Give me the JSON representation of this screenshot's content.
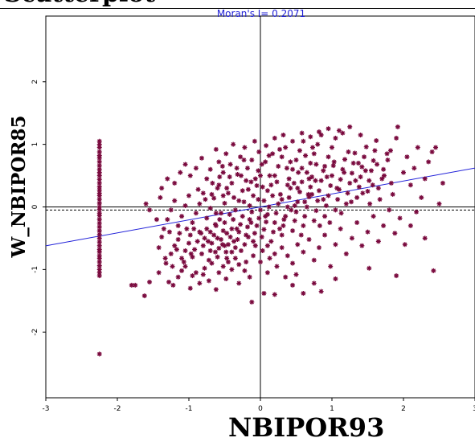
{
  "cut_title": "Scatterplot",
  "chart_data": {
    "type": "scatter",
    "stat_label": "Moran's I= 0.2071",
    "xlabel": "NBIPOR93",
    "ylabel": "W_NBIPOR85",
    "xlim": [
      -3,
      3
    ],
    "ylim": [
      -3.05,
      3.05
    ],
    "x_ticks": [
      -3,
      -2,
      -1,
      0,
      1,
      2,
      3
    ],
    "y_ticks": [
      -2,
      -1,
      0,
      1,
      2
    ],
    "regression": {
      "slope": 0.2071,
      "intercept": 0.0
    },
    "mean_line_y": -0.05,
    "marker": "asterisk",
    "colors": {
      "points": "#7a0a3e",
      "regression": "#2323d9",
      "axes": "#000000",
      "stat_label": "#1f1fd6"
    },
    "column_cluster": {
      "x": -2.25,
      "y": [
        1.05,
        1.0,
        0.95,
        0.88,
        0.82,
        0.78,
        0.72,
        0.66,
        0.6,
        0.55,
        0.5,
        0.44,
        0.38,
        0.32,
        0.27,
        0.22,
        0.18,
        0.12,
        0.06,
        0.0,
        -0.04,
        -0.1,
        -0.14,
        -0.2,
        -0.26,
        -0.32,
        -0.38,
        -0.44,
        -0.5,
        -0.56,
        -0.62,
        -0.68,
        -0.72,
        -0.78,
        -0.82,
        -0.88,
        -0.94,
        -1.0,
        -1.05,
        -1.1,
        -2.35
      ]
    },
    "points": [
      [
        -1.75,
        -1.25
      ],
      [
        -1.8,
        -1.25
      ],
      [
        -1.62,
        -1.42
      ],
      [
        -1.55,
        -1.2
      ],
      [
        -1.42,
        -1.05
      ],
      [
        -1.32,
        -0.9
      ],
      [
        -1.28,
        -1.2
      ],
      [
        -1.22,
        -1.25
      ],
      [
        -1.15,
        -1.12
      ],
      [
        -1.1,
        -1.02
      ],
      [
        -1.05,
        -0.95
      ],
      [
        -0.98,
        -1.3
      ],
      [
        -0.95,
        -1.1
      ],
      [
        -0.9,
        -1.05
      ],
      [
        -0.85,
        -1.22
      ],
      [
        -0.8,
        -1.08
      ],
      [
        -0.78,
        -0.98
      ],
      [
        -0.72,
        -1.18
      ],
      [
        -0.68,
        -0.9
      ],
      [
        -0.62,
        -1.32
      ],
      [
        -0.58,
        -1.05
      ],
      [
        -0.52,
        -0.95
      ],
      [
        -0.48,
        -1.15
      ],
      [
        -0.45,
        -0.88
      ],
      [
        -0.4,
        -1.0
      ],
      [
        -0.35,
        -0.82
      ],
      [
        -0.3,
        -1.22
      ],
      [
        -0.22,
        -1.02
      ],
      [
        -0.15,
        -1.12
      ],
      [
        -0.12,
        -1.52
      ],
      [
        -1.25,
        -0.75
      ],
      [
        -1.2,
        -0.62
      ],
      [
        -1.15,
        -0.52
      ],
      [
        -1.1,
        -0.82
      ],
      [
        -1.05,
        -0.7
      ],
      [
        -1.0,
        -0.58
      ],
      [
        -0.98,
        -0.45
      ],
      [
        -0.95,
        -0.8
      ],
      [
        -0.92,
        -0.68
      ],
      [
        -0.88,
        -0.55
      ],
      [
        -0.85,
        -0.4
      ],
      [
        -0.82,
        -0.75
      ],
      [
        -0.8,
        -0.62
      ],
      [
        -0.78,
        -0.5
      ],
      [
        -0.75,
        -0.35
      ],
      [
        -0.72,
        -0.85
      ],
      [
        -0.7,
        -0.7
      ],
      [
        -0.68,
        -0.58
      ],
      [
        -0.65,
        -0.45
      ],
      [
        -0.62,
        -0.3
      ],
      [
        -0.6,
        -0.8
      ],
      [
        -0.58,
        -0.66
      ],
      [
        -0.55,
        -0.52
      ],
      [
        -0.52,
        -0.38
      ],
      [
        -0.5,
        -0.25
      ],
      [
        -0.48,
        -0.72
      ],
      [
        -0.45,
        -0.6
      ],
      [
        -0.42,
        -0.48
      ],
      [
        -0.4,
        -0.35
      ],
      [
        -0.38,
        -0.2
      ],
      [
        -0.35,
        -0.65
      ],
      [
        -0.32,
        -0.52
      ],
      [
        -0.3,
        -0.4
      ],
      [
        -0.28,
        -0.28
      ],
      [
        -0.25,
        -0.15
      ],
      [
        -0.22,
        -0.6
      ],
      [
        -0.2,
        -0.45
      ],
      [
        -0.18,
        -0.32
      ],
      [
        -0.15,
        -0.2
      ],
      [
        -0.12,
        -0.08
      ],
      [
        -0.1,
        -0.55
      ],
      [
        -0.08,
        -0.42
      ],
      [
        -0.05,
        -0.3
      ],
      [
        -0.02,
        -0.18
      ],
      [
        0.0,
        -0.05
      ],
      [
        0.02,
        -0.48
      ],
      [
        0.05,
        -0.36
      ],
      [
        0.08,
        -0.24
      ],
      [
        0.1,
        -0.12
      ],
      [
        0.12,
        0.0
      ],
      [
        -1.35,
        -0.35
      ],
      [
        -1.3,
        -0.2
      ],
      [
        -1.25,
        -0.05
      ],
      [
        -1.2,
        0.1
      ],
      [
        -1.15,
        -0.3
      ],
      [
        -1.1,
        -0.15
      ],
      [
        -1.05,
        0.02
      ],
      [
        -1.0,
        0.18
      ],
      [
        -0.95,
        -0.25
      ],
      [
        -0.9,
        -0.1
      ],
      [
        -0.85,
        0.05
      ],
      [
        -0.8,
        0.22
      ],
      [
        -0.75,
        -0.18
      ],
      [
        -0.7,
        -0.02
      ],
      [
        -0.65,
        0.14
      ],
      [
        -0.6,
        0.3
      ],
      [
        -0.55,
        -0.1
      ],
      [
        -0.5,
        0.06
      ],
      [
        -0.45,
        0.22
      ],
      [
        -0.4,
        0.38
      ],
      [
        -0.35,
        -0.05
      ],
      [
        -0.3,
        0.1
      ],
      [
        -0.25,
        0.26
      ],
      [
        -0.2,
        0.42
      ],
      [
        -0.15,
        0.02
      ],
      [
        -0.1,
        0.18
      ],
      [
        -0.05,
        0.34
      ],
      [
        0.0,
        0.5
      ],
      [
        0.05,
        0.1
      ],
      [
        0.1,
        0.26
      ],
      [
        -1.6,
        0.05
      ],
      [
        -1.55,
        -0.05
      ],
      [
        -1.45,
        -0.2
      ],
      [
        -1.4,
        0.15
      ],
      [
        -1.38,
        0.3
      ],
      [
        -1.3,
        0.45
      ],
      [
        -1.2,
        0.38
      ],
      [
        -1.12,
        0.55
      ],
      [
        -1.05,
        0.68
      ],
      [
        -0.98,
        0.5
      ],
      [
        -0.9,
        0.62
      ],
      [
        -0.82,
        0.78
      ],
      [
        -0.75,
        0.45
      ],
      [
        -0.7,
        0.6
      ],
      [
        -0.62,
        0.92
      ],
      [
        -0.58,
        0.72
      ],
      [
        -0.52,
        0.55
      ],
      [
        -0.48,
        0.85
      ],
      [
        -0.42,
        0.68
      ],
      [
        -0.38,
        1.0
      ],
      [
        -0.32,
        0.52
      ],
      [
        -0.28,
        0.8
      ],
      [
        -0.22,
        0.95
      ],
      [
        -0.18,
        0.62
      ],
      [
        -0.12,
        0.75
      ],
      [
        -0.08,
        1.05
      ],
      [
        -0.02,
        0.88
      ],
      [
        0.02,
        0.68
      ],
      [
        0.08,
        0.98
      ],
      [
        0.12,
        0.82
      ],
      [
        0.15,
        -0.55
      ],
      [
        0.18,
        -0.4
      ],
      [
        0.2,
        -0.25
      ],
      [
        0.22,
        -0.1
      ],
      [
        0.25,
        0.05
      ],
      [
        0.28,
        0.2
      ],
      [
        0.3,
        -0.45
      ],
      [
        0.32,
        -0.3
      ],
      [
        0.35,
        -0.15
      ],
      [
        0.38,
        0.0
      ],
      [
        0.4,
        0.15
      ],
      [
        0.42,
        0.3
      ],
      [
        0.45,
        -0.38
      ],
      [
        0.48,
        -0.22
      ],
      [
        0.5,
        -0.08
      ],
      [
        0.52,
        0.08
      ],
      [
        0.55,
        0.24
      ],
      [
        0.58,
        0.4
      ],
      [
        0.6,
        -0.3
      ],
      [
        0.62,
        -0.15
      ],
      [
        0.65,
        0.0
      ],
      [
        0.68,
        0.16
      ],
      [
        0.7,
        0.32
      ],
      [
        0.72,
        0.48
      ],
      [
        0.75,
        -0.22
      ],
      [
        0.78,
        -0.06
      ],
      [
        0.8,
        0.1
      ],
      [
        0.82,
        0.26
      ],
      [
        0.85,
        0.42
      ],
      [
        0.88,
        0.58
      ],
      [
        0.9,
        -0.15
      ],
      [
        0.92,
        0.02
      ],
      [
        0.95,
        0.18
      ],
      [
        0.98,
        0.34
      ],
      [
        1.0,
        0.5
      ],
      [
        1.02,
        0.66
      ],
      [
        1.05,
        -0.05
      ],
      [
        1.08,
        0.12
      ],
      [
        1.1,
        0.28
      ],
      [
        1.12,
        0.44
      ],
      [
        1.15,
        0.6
      ],
      [
        1.18,
        0.76
      ],
      [
        1.2,
        0.05
      ],
      [
        1.22,
        0.22
      ],
      [
        1.25,
        0.38
      ],
      [
        1.28,
        0.54
      ],
      [
        1.3,
        0.7
      ],
      [
        1.32,
        0.86
      ],
      [
        1.35,
        0.15
      ],
      [
        1.38,
        0.32
      ],
      [
        1.4,
        0.48
      ],
      [
        1.42,
        0.64
      ],
      [
        1.45,
        0.8
      ],
      [
        1.48,
        0.96
      ],
      [
        1.5,
        0.25
      ],
      [
        1.52,
        0.42
      ],
      [
        1.55,
        0.58
      ],
      [
        1.58,
        0.74
      ],
      [
        1.6,
        0.9
      ],
      [
        1.62,
        1.06
      ],
      [
        0.15,
        0.35
      ],
      [
        0.2,
        0.5
      ],
      [
        0.25,
        0.65
      ],
      [
        0.3,
        0.8
      ],
      [
        0.35,
        0.95
      ],
      [
        0.4,
        0.45
      ],
      [
        0.45,
        0.6
      ],
      [
        0.5,
        0.75
      ],
      [
        0.55,
        0.9
      ],
      [
        0.6,
        1.05
      ],
      [
        0.65,
        0.55
      ],
      [
        0.7,
        0.7
      ],
      [
        0.75,
        0.85
      ],
      [
        0.8,
        1.0
      ],
      [
        0.85,
        1.15
      ],
      [
        0.9,
        0.65
      ],
      [
        0.95,
        0.8
      ],
      [
        1.0,
        0.95
      ],
      [
        1.05,
        1.1
      ],
      [
        1.1,
        1.22
      ],
      [
        0.2,
        1.1
      ],
      [
        0.32,
        1.15
      ],
      [
        0.45,
        1.05
      ],
      [
        0.58,
        1.18
      ],
      [
        0.7,
        1.12
      ],
      [
        0.82,
        1.2
      ],
      [
        0.95,
        1.25
      ],
      [
        1.15,
        1.18
      ],
      [
        1.25,
        1.28
      ],
      [
        1.4,
        1.15
      ],
      [
        1.65,
        0.3
      ],
      [
        1.7,
        0.45
      ],
      [
        1.72,
        0.6
      ],
      [
        1.78,
        0.75
      ],
      [
        1.82,
        0.9
      ],
      [
        1.85,
        0.2
      ],
      [
        1.9,
        1.1
      ],
      [
        1.92,
        1.28
      ],
      [
        2.0,
        0.55
      ],
      [
        2.05,
        0.8
      ],
      [
        2.1,
        0.35
      ],
      [
        2.15,
        0.62
      ],
      [
        2.2,
        0.95
      ],
      [
        2.25,
        0.15
      ],
      [
        2.3,
        0.45
      ],
      [
        2.35,
        0.72
      ],
      [
        2.4,
        0.88
      ],
      [
        2.45,
        0.95
      ],
      [
        2.5,
        0.05
      ],
      [
        2.55,
        0.38
      ],
      [
        0.3,
        -0.65
      ],
      [
        0.38,
        -0.78
      ],
      [
        0.45,
        -0.9
      ],
      [
        0.52,
        -0.6
      ],
      [
        0.6,
        -0.72
      ],
      [
        0.68,
        -0.52
      ],
      [
        0.75,
        -0.85
      ],
      [
        0.82,
        -0.65
      ],
      [
        0.9,
        -0.45
      ],
      [
        0.98,
        -0.95
      ],
      [
        1.05,
        -0.6
      ],
      [
        1.12,
        -0.35
      ],
      [
        1.2,
        -0.75
      ],
      [
        1.28,
        -0.5
      ],
      [
        1.35,
        -0.25
      ],
      [
        1.42,
        -0.62
      ],
      [
        1.5,
        -0.4
      ],
      [
        1.58,
        -0.15
      ],
      [
        1.65,
        -0.55
      ],
      [
        1.72,
        -0.3
      ],
      [
        1.8,
        -0.05
      ],
      [
        1.88,
        -0.42
      ],
      [
        1.95,
        -0.18
      ],
      [
        2.02,
        -0.6
      ],
      [
        2.1,
        -0.3
      ],
      [
        2.18,
        -0.08
      ],
      [
        2.3,
        -0.5
      ],
      [
        2.42,
        -1.02
      ],
      [
        1.9,
        -1.1
      ],
      [
        1.52,
        -0.98
      ],
      [
        0.35,
        -1.12
      ],
      [
        0.6,
        -1.38
      ],
      [
        0.85,
        -1.35
      ],
      [
        1.05,
        -1.15
      ],
      [
        0.2,
        -1.4
      ],
      [
        0.45,
        -1.25
      ],
      [
        0.75,
        -1.22
      ],
      [
        0.1,
        -1.05
      ],
      [
        0.5,
        -1.08
      ],
      [
        0.05,
        -1.38
      ],
      [
        -0.62,
        -0.1
      ],
      [
        -0.58,
        0.35
      ],
      [
        -0.52,
        0.18
      ],
      [
        -0.47,
        -0.42
      ],
      [
        -0.43,
        0.48
      ],
      [
        -0.37,
        -0.55
      ],
      [
        -0.33,
        0.62
      ],
      [
        -0.27,
        -0.7
      ],
      [
        -0.23,
        0.75
      ],
      [
        -0.17,
        -0.48
      ],
      [
        -0.13,
        0.4
      ],
      [
        -0.07,
        -0.62
      ],
      [
        -0.03,
        0.58
      ],
      [
        0.03,
        -0.7
      ],
      [
        0.07,
        0.72
      ],
      [
        0.13,
        -0.82
      ],
      [
        0.17,
        0.85
      ],
      [
        0.23,
        -0.95
      ],
      [
        0.27,
        0.92
      ],
      [
        0.33,
        -0.2
      ],
      [
        0.37,
        0.62
      ],
      [
        0.43,
        -0.05
      ],
      [
        0.47,
        0.38
      ],
      [
        0.53,
        0.55
      ],
      [
        0.57,
        -0.45
      ],
      [
        0.63,
        0.82
      ],
      [
        0.67,
        0.2
      ],
      [
        0.73,
        0.95
      ],
      [
        0.77,
        0.42
      ],
      [
        0.83,
        -0.3
      ],
      [
        -0.68,
        0.2
      ],
      [
        -0.63,
        -0.28
      ],
      [
        -0.57,
        0.48
      ],
      [
        -0.53,
        -0.6
      ],
      [
        -0.47,
        0.3
      ],
      [
        -0.43,
        -0.12
      ],
      [
        -0.37,
        0.15
      ],
      [
        -0.33,
        -0.35
      ],
      [
        -0.27,
        0.5
      ],
      [
        -0.23,
        0.08
      ],
      [
        -0.17,
        0.28
      ],
      [
        -0.13,
        -0.25
      ],
      [
        -0.07,
        0.45
      ],
      [
        -0.03,
        0.12
      ],
      [
        0.03,
        0.32
      ],
      [
        0.07,
        -0.15
      ],
      [
        0.13,
        0.5
      ],
      [
        0.17,
        0.18
      ],
      [
        0.23,
        0.4
      ],
      [
        0.27,
        -0.35
      ],
      [
        -0.93,
        -0.35
      ],
      [
        -0.87,
        0.28
      ],
      [
        -0.83,
        -0.42
      ],
      [
        -0.77,
        0.12
      ],
      [
        -0.73,
        -0.55
      ],
      [
        -0.67,
        0.38
      ],
      [
        -0.63,
        -0.72
      ],
      [
        -0.57,
        -0.2
      ],
      [
        -0.53,
        0.65
      ],
      [
        -0.47,
        -0.82
      ],
      [
        0.88,
        0.12
      ],
      [
        0.93,
        0.48
      ],
      [
        0.97,
        -0.25
      ],
      [
        1.03,
        0.72
      ],
      [
        1.07,
        0.3
      ],
      [
        1.13,
        -0.1
      ],
      [
        1.17,
        0.55
      ],
      [
        1.23,
        0.88
      ],
      [
        1.27,
        0.08
      ],
      [
        1.33,
        0.42
      ],
      [
        1.37,
        0.7
      ],
      [
        1.43,
        0.22
      ],
      [
        1.47,
        0.58
      ],
      [
        1.53,
        0.05
      ],
      [
        1.57,
        0.35
      ],
      [
        1.63,
        0.68
      ],
      [
        1.67,
        0.12
      ],
      [
        1.73,
        0.5
      ],
      [
        1.77,
        0.85
      ],
      [
        1.83,
        0.38
      ],
      [
        -1.42,
        -0.65
      ],
      [
        -1.38,
        -0.48
      ],
      [
        -1.33,
        -0.82
      ],
      [
        -1.27,
        -0.4
      ],
      [
        -1.23,
        -0.95
      ],
      [
        -1.17,
        -0.68
      ],
      [
        -1.13,
        -0.42
      ],
      [
        -1.07,
        -0.88
      ],
      [
        -1.03,
        -0.35
      ],
      [
        -0.97,
        -0.75
      ],
      [
        0.3,
        0.12
      ],
      [
        0.38,
        0.35
      ],
      [
        0.42,
        0.72
      ],
      [
        0.48,
        0.02
      ],
      [
        0.52,
        0.3
      ],
      [
        0.58,
        0.62
      ],
      [
        0.62,
        0.08
      ],
      [
        0.68,
        0.45
      ],
      [
        0.72,
        0.2
      ],
      [
        0.78,
        0.68
      ],
      [
        -0.2,
        -0.88
      ],
      [
        -0.1,
        -0.78
      ],
      [
        0.0,
        -0.88
      ],
      [
        0.1,
        -0.62
      ],
      [
        0.2,
        -0.75
      ],
      [
        -0.3,
        -0.92
      ],
      [
        -0.4,
        -0.72
      ],
      [
        -0.5,
        -0.62
      ],
      [
        -0.6,
        -0.5
      ],
      [
        -0.7,
        -0.4
      ]
    ]
  }
}
